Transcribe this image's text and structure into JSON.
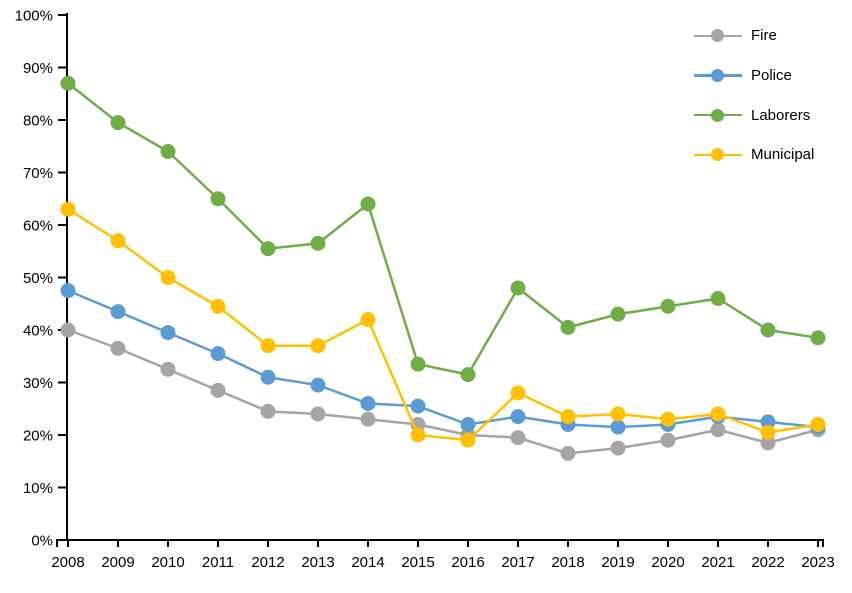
{
  "chart_data": {
    "type": "line",
    "title": "",
    "xlabel": "",
    "ylabel": "",
    "grid": false,
    "background": "#FFFFFF",
    "axis_color": "#000000",
    "legend_position": "top-right",
    "y_axis": {
      "min": 0,
      "max": 100,
      "tick_step": 10,
      "unit": "%"
    },
    "y_tick_labels": [
      "0%",
      "10%",
      "20%",
      "30%",
      "40%",
      "50%",
      "60%",
      "70%",
      "80%",
      "90%",
      "100%"
    ],
    "x": [
      2008,
      2009,
      2010,
      2011,
      2012,
      2013,
      2014,
      2015,
      2016,
      2017,
      2018,
      2019,
      2020,
      2021,
      2022,
      2023
    ],
    "series": [
      {
        "name": "Fire",
        "color": "#A5A5A5",
        "values": [
          40,
          36.5,
          32.5,
          28.5,
          24.5,
          24,
          23,
          22,
          20,
          19.5,
          16.5,
          17.5,
          19,
          21,
          18.5,
          21
        ]
      },
      {
        "name": "Police",
        "color": "#5B9BD5",
        "values": [
          47.5,
          43.5,
          39.5,
          35.5,
          31,
          29.5,
          26,
          25.5,
          22,
          23.5,
          22,
          21.5,
          22,
          23.5,
          22.5,
          21.5
        ]
      },
      {
        "name": "Laborers",
        "color": "#70AD47",
        "values": [
          87,
          79.5,
          74,
          65,
          55.5,
          56.5,
          64,
          33.5,
          31.5,
          48,
          40.5,
          43,
          44.5,
          46,
          40,
          38.5
        ]
      },
      {
        "name": "Municipal",
        "color": "#FFC000",
        "values": [
          63,
          57,
          50,
          44.5,
          37,
          37,
          42,
          20,
          19,
          28,
          23.5,
          24,
          23,
          24,
          20.5,
          22
        ]
      }
    ]
  }
}
